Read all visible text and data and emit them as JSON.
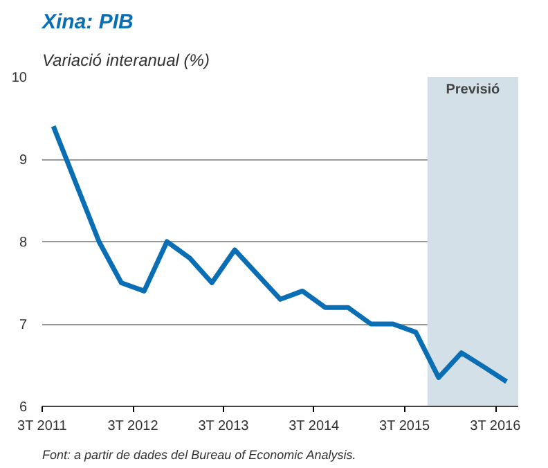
{
  "chart_data": {
    "type": "line",
    "title": "Xina: PIB",
    "subtitle": "Variació interanual (%)",
    "x": [
      "2011-08-15",
      "2011-11-15",
      "2012-02-15",
      "2012-05-15",
      "2012-08-15",
      "2012-11-15",
      "2013-02-15",
      "2013-05-15",
      "2013-08-15",
      "2013-11-15",
      "2014-02-15",
      "2014-05-15",
      "2014-08-15",
      "2014-11-15",
      "2015-02-15",
      "2015-05-15",
      "2015-08-15",
      "2015-11-15",
      "2016-02-15",
      "2016-05-15",
      "2016-08-15"
    ],
    "series": [
      {
        "color": "#0a6eb4",
        "values": [
          9.4,
          8.7,
          8.0,
          7.5,
          7.4,
          8.0,
          7.8,
          7.5,
          7.9,
          7.6,
          7.3,
          7.4,
          7.2,
          7.2,
          7.0,
          7.0,
          6.9,
          6.35,
          6.65,
          6.48,
          6.3
        ]
      }
    ],
    "xlim": [
      "2011-07-01",
      "2016-10-01"
    ],
    "xticks": [
      {
        "value": "2011-07-01",
        "label": "3T 2011"
      },
      {
        "value": "2012-07-01",
        "label": "3T 2012"
      },
      {
        "value": "2013-07-01",
        "label": "3T 2013"
      },
      {
        "value": "2014-07-01",
        "label": "3T 2014"
      },
      {
        "value": "2015-07-01",
        "label": "3T 2015"
      },
      {
        "value": "2016-07-01",
        "label": "3T 2016"
      }
    ],
    "ylim": [
      6,
      10
    ],
    "yticks": [
      6,
      7,
      8,
      9,
      10
    ],
    "grid": "y",
    "marker": "none",
    "line_style": "solid",
    "bands": [
      {
        "axis": "x",
        "from": "2015-10-01",
        "to": "2016-10-01",
        "label": "Previsió",
        "color": "#d3e0e8"
      }
    ],
    "annotations": [
      "Font: a partir de dades del Bureau of Economic Analysis."
    ]
  }
}
